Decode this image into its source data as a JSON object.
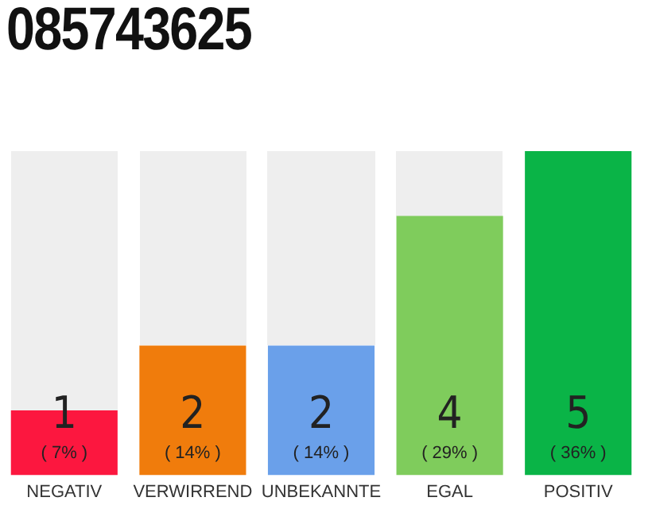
{
  "chart_data": {
    "type": "bar",
    "title": "085743625",
    "categories": [
      "NEGATIV",
      "VERWIRREND",
      "UNBEKANNTE",
      "EGAL",
      "POSITIV"
    ],
    "values": [
      1,
      2,
      2,
      4,
      5
    ],
    "colors": [
      "#fc173f",
      "#f07c0c",
      "#6aa0ea",
      "#7fcc5c",
      "#0ab447"
    ],
    "data_labels": true,
    "annotations": [
      "( 7% )",
      "( 14% )",
      "( 14% )",
      "( 29% )",
      "( 36% )"
    ],
    "grid": false,
    "legend": false
  }
}
